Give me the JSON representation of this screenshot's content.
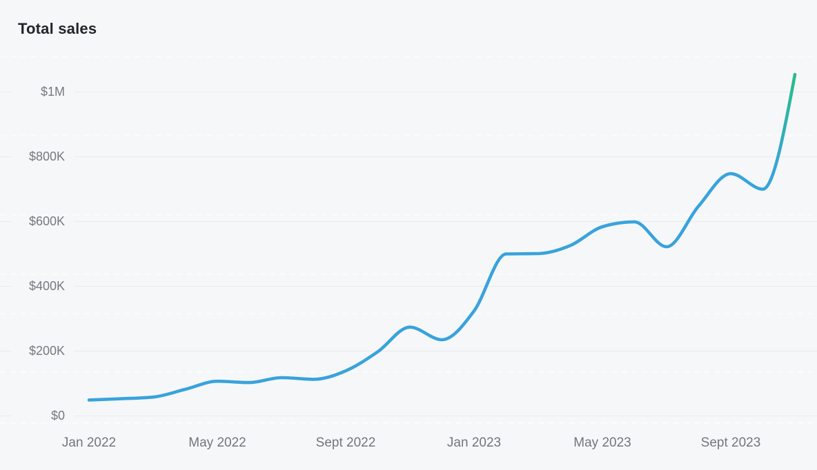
{
  "page": {
    "background": "#f6f7f8"
  },
  "header": {
    "title": "Total sales"
  },
  "chart_data": {
    "type": "line",
    "title": "Total sales",
    "x": [
      "Jan 2022",
      "Feb 2022",
      "Mar 2022",
      "Apr 2022",
      "May 2022",
      "Jun 2022",
      "Jul 2022",
      "Aug 2022",
      "Sep 2022",
      "Oct 2022",
      "Nov 2022",
      "Dec 2022",
      "Jan 2023",
      "Feb 2023",
      "Mar 2023",
      "Apr 2023",
      "May 2023",
      "Jun 2023",
      "Jul 2023",
      "Aug 2023",
      "Sep 2023",
      "Oct 2023",
      "Nov 2023"
    ],
    "series": [
      {
        "name": "Total sales",
        "values": [
          48000,
          52000,
          57000,
          81000,
          106000,
          102000,
          117000,
          112000,
          138000,
          197000,
          273000,
          234000,
          323000,
          499000,
          500000,
          525000,
          583000,
          598000,
          521000,
          647000,
          747000,
          699000,
          1053000
        ]
      }
    ],
    "y_ticks": [
      {
        "value": 0,
        "label": "$0"
      },
      {
        "value": 200000,
        "label": "$200K"
      },
      {
        "value": 400000,
        "label": "$400K"
      },
      {
        "value": 600000,
        "label": "$600K"
      },
      {
        "value": 800000,
        "label": "$800K"
      },
      {
        "value": 1000000,
        "label": "$1M"
      }
    ],
    "x_ticks": [
      {
        "index": 0,
        "label": "Jan 2022"
      },
      {
        "index": 4,
        "label": "May 2022"
      },
      {
        "index": 8,
        "label": "Sept 2022"
      },
      {
        "index": 12,
        "label": "Jan 2023"
      },
      {
        "index": 16,
        "label": "May 2023"
      },
      {
        "index": 20,
        "label": "Sept 2023"
      }
    ],
    "ylim": [
      0,
      1120000
    ],
    "grid": "horizontal",
    "legend": "none",
    "colors": {
      "line_start": "#38a3dc",
      "line_end": "#29bd8a",
      "gridline": "#e8eaec",
      "axis_label": "#75797e",
      "title": "#21252a",
      "background": "#f6f7f8"
    }
  }
}
